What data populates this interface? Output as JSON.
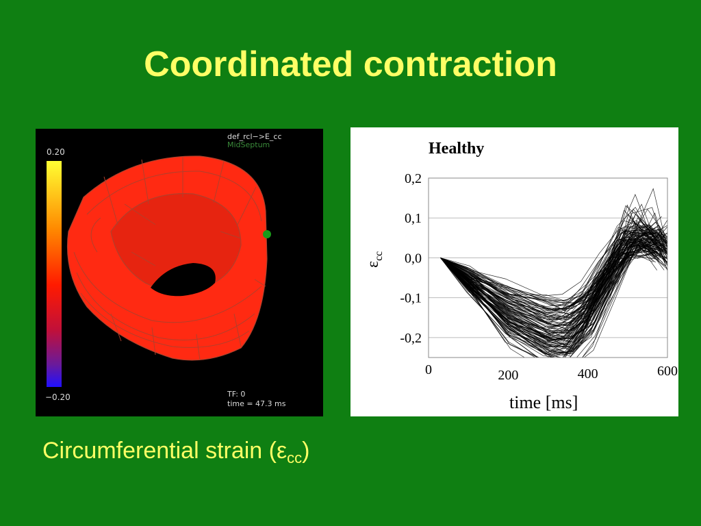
{
  "slide": {
    "title": "Coordinated contraction",
    "caption_prefix": "Circumferential strain (ε",
    "caption_subscript": "cc",
    "caption_suffix": ")"
  },
  "visualization": {
    "label_line1": "def_rcl−>E_cc",
    "label_line2": "MidSeptum",
    "scale_max": "0.20",
    "scale_min": "−0.20",
    "frame_label": "TF: 0",
    "time_label": "time = 47.3 ms",
    "colors": {
      "mesh": "#ff2a12",
      "grid": "#b0402c",
      "marker": "#1a9a1a"
    }
  },
  "chart": {
    "title": "Healthy",
    "ylabel_main": "ε",
    "ylabel_sub": "cc",
    "xlabel": "time [ms]",
    "yticks": [
      "0,2",
      "0,1",
      "0,0",
      "-0,1",
      "-0,2"
    ],
    "xticks": [
      "0",
      "200",
      "400",
      "600"
    ]
  },
  "chart_data": {
    "type": "line",
    "title": "Healthy",
    "xlabel": "time [ms]",
    "ylabel": "εcc",
    "xlim": [
      0,
      600
    ],
    "ylim": [
      -0.25,
      0.2
    ],
    "grid": true,
    "series_count": 120,
    "series_template": {
      "x": [
        30,
        100,
        200,
        300,
        350,
        400,
        450,
        500,
        550,
        600
      ],
      "y": [
        0.0,
        -0.05,
        -0.12,
        -0.16,
        -0.16,
        -0.12,
        -0.04,
        0.02,
        0.03,
        0.0
      ]
    }
  }
}
